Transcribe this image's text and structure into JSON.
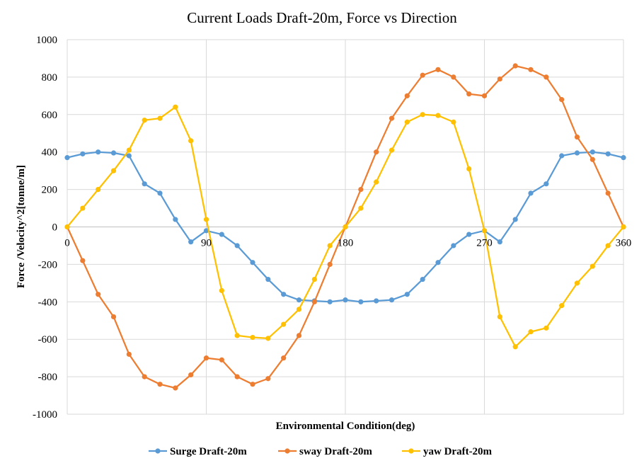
{
  "chart_data": {
    "type": "line",
    "title": "Current Loads Draft-20m, Force vs Direction",
    "xlabel": "Environmental Condition(deg)",
    "ylabel": "Force /Velocity^2[tonne/m]",
    "xlim": [
      0,
      360
    ],
    "ylim": [
      -1000,
      1000
    ],
    "x_ticks": [
      "0",
      "90",
      "180",
      "270",
      "360"
    ],
    "y_ticks": [
      "1000",
      "800",
      "600",
      "400",
      "200",
      "0",
      "-200",
      "-400",
      "-600",
      "-800",
      "-1000"
    ],
    "grid": true,
    "legend_position": "bottom",
    "x": [
      0,
      10,
      20,
      30,
      40,
      50,
      60,
      70,
      80,
      90,
      100,
      110,
      120,
      130,
      140,
      150,
      160,
      170,
      180,
      190,
      200,
      210,
      220,
      230,
      240,
      250,
      260,
      270,
      280,
      290,
      300,
      310,
      320,
      330,
      340,
      350,
      360
    ],
    "series": [
      {
        "name": "Surge Draft-20m",
        "color": "#5B9BD5",
        "values": [
          370,
          390,
          400,
          395,
          380,
          230,
          180,
          40,
          -80,
          -20,
          -40,
          -100,
          -190,
          -280,
          -360,
          -390,
          -395,
          -400,
          -390,
          -400,
          -395,
          -390,
          -360,
          -280,
          -190,
          -100,
          -40,
          -20,
          -80,
          40,
          180,
          230,
          380,
          395,
          400,
          390,
          370
        ]
      },
      {
        "name": "sway Draft-20m",
        "color": "#ED7D31",
        "values": [
          0,
          -180,
          -360,
          -480,
          -680,
          -800,
          -840,
          -860,
          -790,
          -700,
          -710,
          -800,
          -840,
          -810,
          -700,
          -580,
          -400,
          -200,
          0,
          200,
          400,
          580,
          700,
          810,
          840,
          800,
          710,
          700,
          790,
          860,
          840,
          800,
          680,
          480,
          360,
          180,
          0
        ]
      },
      {
        "name": "yaw Draft-20m",
        "color": "#FFC000",
        "values": [
          0,
          100,
          200,
          300,
          410,
          570,
          580,
          640,
          460,
          40,
          -340,
          -580,
          -590,
          -595,
          -520,
          -440,
          -280,
          -100,
          0,
          100,
          240,
          410,
          560,
          600,
          595,
          560,
          310,
          -20,
          -480,
          -640,
          -560,
          -540,
          -420,
          -300,
          -210,
          -100,
          0
        ]
      }
    ]
  }
}
